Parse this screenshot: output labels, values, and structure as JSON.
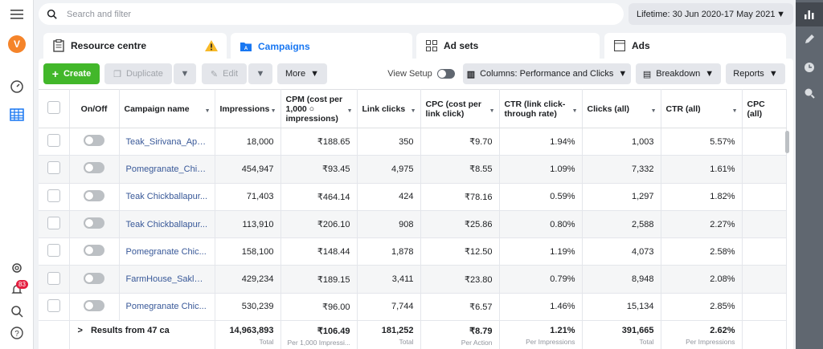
{
  "search": {
    "placeholder": "Search and filter"
  },
  "date_range": {
    "label": "Lifetime: 30 Jun 2020-17 May 2021"
  },
  "user": {
    "initial": "V"
  },
  "notifications": {
    "count": "83"
  },
  "tabs": [
    {
      "label": "Resource centre",
      "icon": "clipboard-icon",
      "active": false
    },
    {
      "label": "Campaigns",
      "icon": "folder-icon",
      "active": true
    },
    {
      "label": "Ad sets",
      "icon": "grid-icon",
      "active": false
    },
    {
      "label": "Ads",
      "icon": "ad-icon",
      "active": false
    }
  ],
  "toolbar": {
    "create_label": "Create",
    "duplicate_label": "Duplicate",
    "edit_label": "Edit",
    "more_label": "More",
    "view_setup_label": "View Setup",
    "columns_label": "Columns: Performance and Clicks",
    "breakdown_label": "Breakdown",
    "reports_label": "Reports"
  },
  "table": {
    "headers": {
      "onoff": "On/Off",
      "name": "Campaign name",
      "impressions": "Impressions",
      "cpm": "CPM (cost per 1,000 ○ impressions)",
      "link_clicks": "Link clicks",
      "cpc": "CPC (cost per link click)",
      "ctr_link": "CTR (link click-through rate)",
      "clicks_all": "Clicks (all)",
      "ctr_all": "CTR (all)",
      "cpc_all": "CPC (all)"
    },
    "rows": [
      {
        "name": "Teak_Sirivana_April...",
        "impressions": "18,000",
        "cpm": "₹188.65",
        "link_clicks": "350",
        "cpc": "₹9.70",
        "ctr_link": "1.94%",
        "clicks_all": "1,003",
        "ctr_all": "5.57%"
      },
      {
        "name": "Pomegranate_Chic...",
        "impressions": "454,947",
        "cpm": "₹93.45",
        "link_clicks": "4,975",
        "cpc": "₹8.55",
        "ctr_link": "1.09%",
        "clicks_all": "7,332",
        "ctr_all": "1.61%"
      },
      {
        "name": "Teak Chickballapur...",
        "impressions": "71,403",
        "cpm": "₹464.14",
        "link_clicks": "424",
        "cpc": "₹78.16",
        "ctr_link": "0.59%",
        "clicks_all": "1,297",
        "ctr_all": "1.82%"
      },
      {
        "name": "Teak Chickballapur...",
        "impressions": "113,910",
        "cpm": "₹206.10",
        "link_clicks": "908",
        "cpc": "₹25.86",
        "ctr_link": "0.80%",
        "clicks_all": "2,588",
        "ctr_all": "2.27%"
      },
      {
        "name": "Pomegranate Chic...",
        "impressions": "158,100",
        "cpm": "₹148.44",
        "link_clicks": "1,878",
        "cpc": "₹12.50",
        "ctr_link": "1.19%",
        "clicks_all": "4,073",
        "ctr_all": "2.58%"
      },
      {
        "name": "FarmHouse_Sakles...",
        "impressions": "429,234",
        "cpm": "₹189.15",
        "link_clicks": "3,411",
        "cpc": "₹23.80",
        "ctr_link": "0.79%",
        "clicks_all": "8,948",
        "ctr_all": "2.08%"
      },
      {
        "name": "Pomegranate Chic...",
        "impressions": "530,239",
        "cpm": "₹96.00",
        "link_clicks": "7,744",
        "cpc": "₹6.57",
        "ctr_link": "1.46%",
        "clicks_all": "15,134",
        "ctr_all": "2.85%"
      }
    ],
    "totals": {
      "label": "Results from 47 ca",
      "impressions": "14,963,893",
      "impressions_sub": "Total",
      "cpm": "₹106.49",
      "cpm_sub": "Per 1,000 Impressi...",
      "link_clicks": "181,252",
      "link_clicks_sub": "Total",
      "cpc": "₹8.79",
      "cpc_sub": "Per Action",
      "ctr_link": "1.21%",
      "ctr_link_sub": "Per Impressions",
      "clicks_all": "391,665",
      "clicks_all_sub": "Total",
      "ctr_all": "2.62%",
      "ctr_all_sub": "Per Impressions"
    }
  },
  "colors": {
    "accent": "#1877f2",
    "create_green": "#42b72a",
    "link": "#385898"
  }
}
